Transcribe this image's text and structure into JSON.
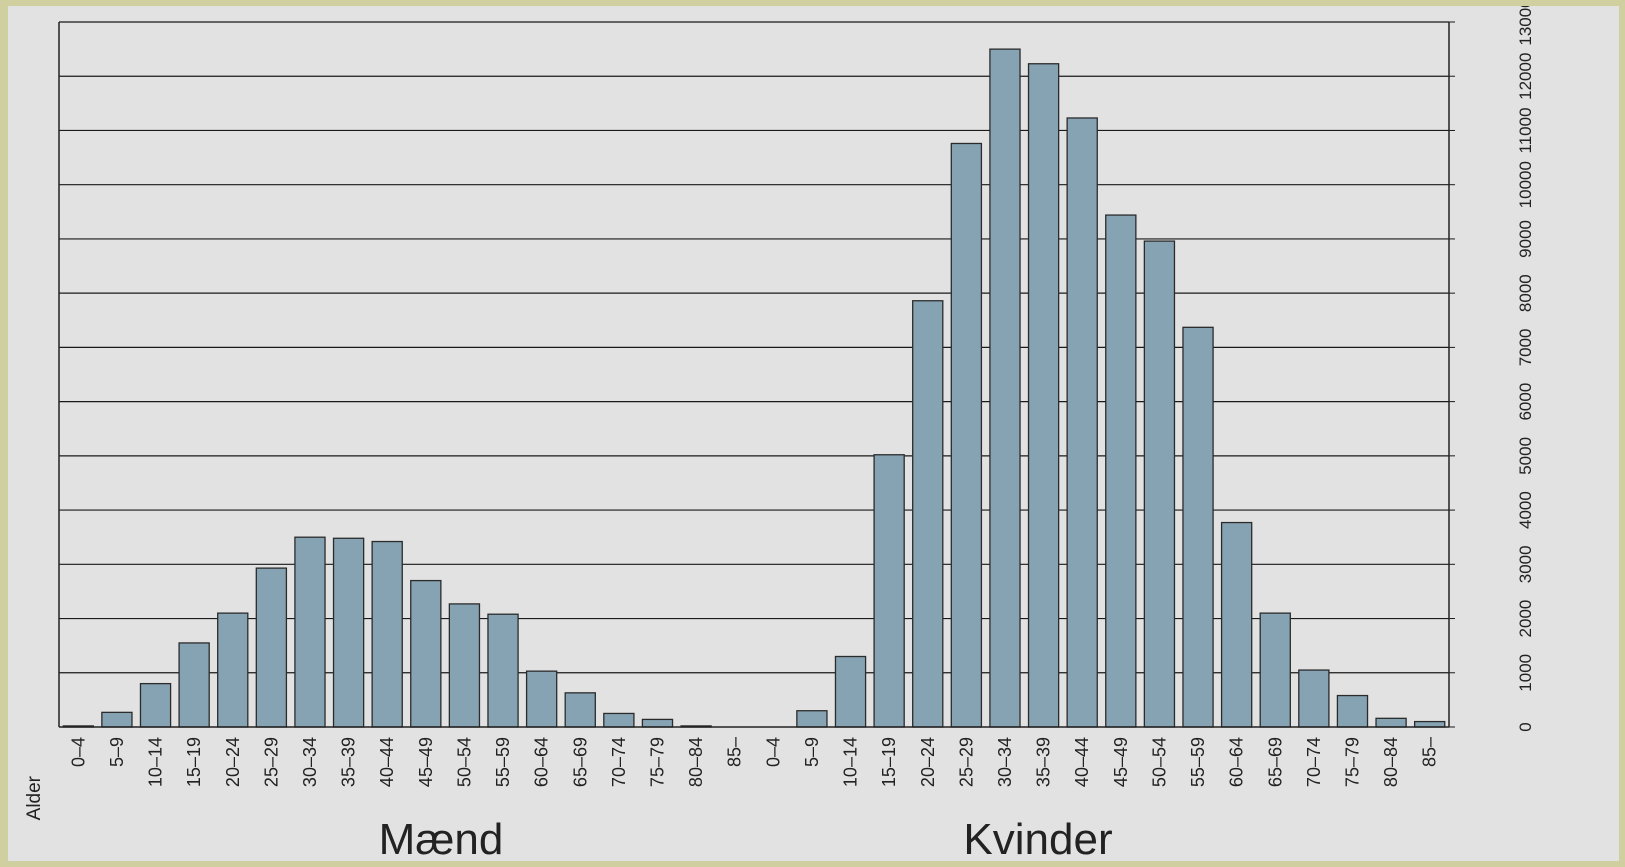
{
  "chart_data": {
    "type": "bar",
    "axis_name": "Alder",
    "groups": [
      {
        "name": "Mænd",
        "categories": [
          "0–4",
          "5–9",
          "10–14",
          "15–19",
          "20–24",
          "25–29",
          "30–34",
          "35–39",
          "40–44",
          "45–49",
          "50–54",
          "55–59",
          "60–64",
          "65–69",
          "70–74",
          "75–79",
          "80–84",
          "85–"
        ],
        "values": [
          20,
          270,
          800,
          1550,
          2100,
          2930,
          3500,
          3480,
          3420,
          2700,
          2270,
          2080,
          1030,
          630,
          250,
          140,
          20,
          0
        ]
      },
      {
        "name": "Kvinder",
        "categories": [
          "0–4",
          "5–9",
          "10–14",
          "15–19",
          "20–24",
          "25–29",
          "30–34",
          "35–39",
          "40–44",
          "45–49",
          "50–54",
          "55–59",
          "60–64",
          "65–69",
          "70–74",
          "75–79",
          "80–84",
          "85–"
        ],
        "values": [
          0,
          300,
          1300,
          5020,
          7860,
          10760,
          12500,
          12230,
          11230,
          9440,
          8960,
          7370,
          3770,
          2100,
          1050,
          580,
          160,
          100
        ]
      }
    ],
    "ylim": [
      0,
      13000
    ],
    "yticks": [
      0,
      1000,
      2000,
      3000,
      4000,
      5000,
      6000,
      7000,
      8000,
      9000,
      10000,
      11000,
      12000,
      13000
    ],
    "y_axis_side": "right",
    "grid": true,
    "colors": {
      "bar": "#86a3b3",
      "bar_stroke": "#2b2b2b",
      "grid": "#1a1a1a",
      "background": "#e2e2e2",
      "frame": "#cfcf9f"
    }
  }
}
